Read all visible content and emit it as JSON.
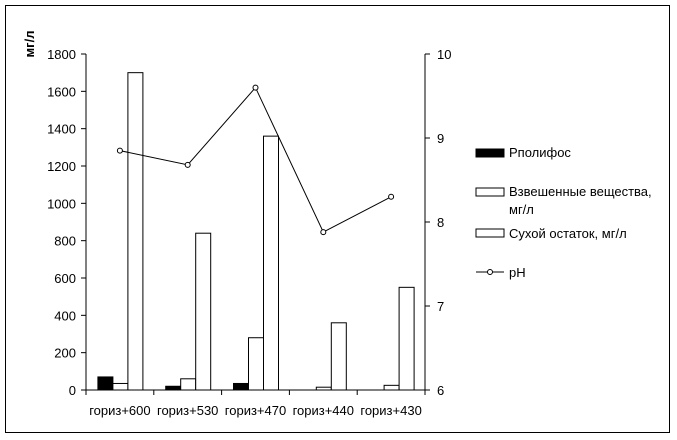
{
  "chart_data": {
    "type": "bar",
    "categories": [
      "гориз+600",
      "гориз+530",
      "гориз+470",
      "гориз+440",
      "гориз+430"
    ],
    "ylabel": "мг/л",
    "ylim": [
      0,
      1800
    ],
    "yticks": [
      0,
      200,
      400,
      600,
      800,
      1000,
      1200,
      1400,
      1600,
      1800
    ],
    "y2lim": [
      6,
      10
    ],
    "y2ticks": [
      6,
      7,
      8,
      9,
      10
    ],
    "grid": false,
    "legend_position": "right",
    "series": [
      {
        "name": "Рполифос",
        "kind": "bar",
        "axis": "left",
        "fill": "#000000",
        "values": [
          70,
          20,
          35,
          0,
          0
        ]
      },
      {
        "name": "Взвешенные вещества, мг/л",
        "kind": "bar",
        "axis": "left",
        "fill": "#ffffff",
        "values": [
          35,
          60,
          280,
          15,
          25
        ]
      },
      {
        "name": "Сухой остаток, мг/л",
        "kind": "bar",
        "axis": "left",
        "fill": "#ffffff",
        "values": [
          1700,
          840,
          1360,
          360,
          550
        ]
      },
      {
        "name": "pH",
        "kind": "line",
        "axis": "right",
        "marker": "circle",
        "values": [
          8.85,
          8.68,
          9.6,
          7.88,
          8.3
        ]
      }
    ]
  }
}
